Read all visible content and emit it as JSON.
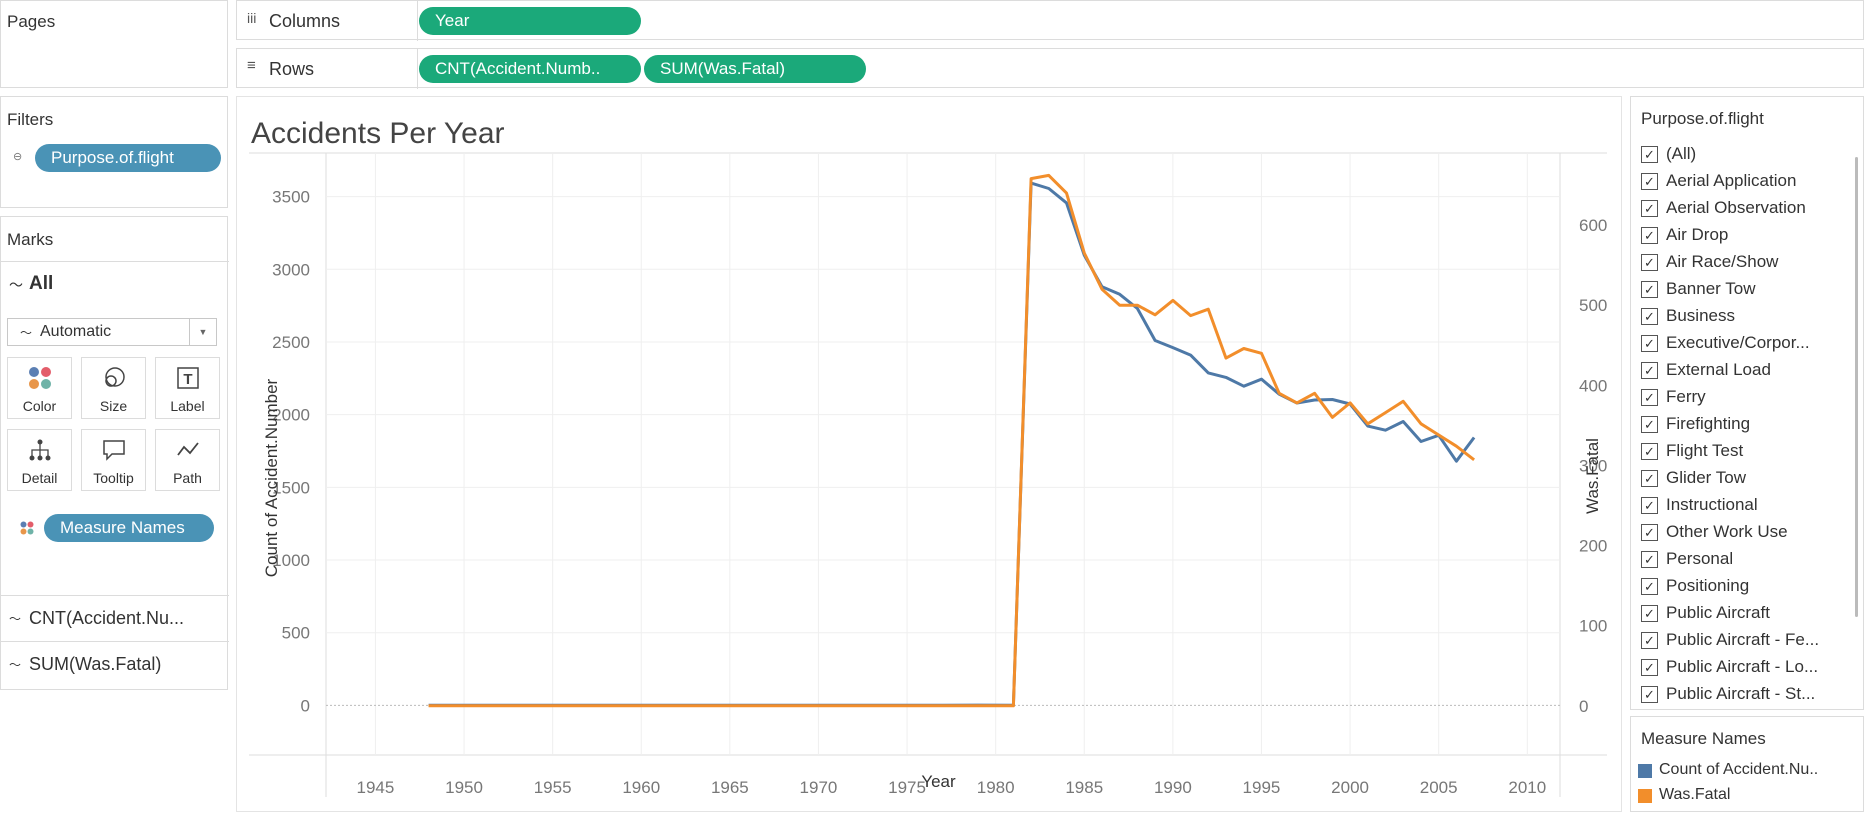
{
  "pages": {
    "title": "Pages"
  },
  "shelves": {
    "columns_label": "Columns",
    "rows_label": "Rows",
    "columns": [
      "Year"
    ],
    "rows": [
      "CNT(Accident.Numb..",
      "SUM(Was.Fatal)"
    ]
  },
  "filters": {
    "title": "Filters",
    "pill": "Purpose.of.flight"
  },
  "marks": {
    "title": "Marks",
    "all_label": "All",
    "mark_type": "Automatic",
    "cards": [
      "Color",
      "Size",
      "Label",
      "Detail",
      "Tooltip",
      "Path"
    ],
    "color_pill": "Measure Names",
    "measures": [
      "CNT(Accident.Nu...",
      "SUM(Was.Fatal)"
    ]
  },
  "filter_card": {
    "title": "Purpose.of.flight",
    "items": [
      "(All)",
      "Aerial Application",
      "Aerial Observation",
      "Air Drop",
      "Air Race/Show",
      "Banner Tow",
      "Business",
      "Executive/Corpor...",
      "External Load",
      "Ferry",
      "Firefighting",
      "Flight Test",
      "Glider Tow",
      "Instructional",
      "Other Work Use",
      "Personal",
      "Positioning",
      "Public Aircraft",
      "Public Aircraft - Fe...",
      "Public Aircraft - Lo...",
      "Public Aircraft - St..."
    ]
  },
  "legend": {
    "title": "Measure Names",
    "items": [
      {
        "label": "Count of Accident.Nu..",
        "color": "#4e79a7"
      },
      {
        "label": "Was.Fatal",
        "color": "#f28e2b"
      }
    ]
  },
  "chart_data": {
    "type": "line",
    "title": "Accidents Per Year",
    "xlabel": "Year",
    "ylabel": "Count of Accident.Number",
    "ylabel_right": "Was.Fatal",
    "xlim": [
      1943,
      2011
    ],
    "ylim_left": [
      -190,
      3800
    ],
    "ylim_right": [
      -34,
      690
    ],
    "x_ticks": [
      1945,
      1950,
      1955,
      1960,
      1965,
      1970,
      1975,
      1980,
      1985,
      1990,
      1995,
      2000,
      2005,
      2010
    ],
    "y_ticks_left": [
      0,
      500,
      1000,
      1500,
      2000,
      2500,
      3000,
      3500
    ],
    "y_ticks_right": [
      0,
      100,
      200,
      300,
      400,
      500,
      600
    ],
    "series": [
      {
        "name": "Count of Accident.Nu..",
        "axis": "left",
        "color": "#4e79a7",
        "x": [
          1948,
          1962,
          1974,
          1977,
          1979,
          1981,
          1982,
          1983,
          1984,
          1985,
          1986,
          1987,
          1988,
          1989,
          1990,
          1991,
          1992,
          1993,
          1994,
          1995,
          1996,
          1997,
          1998,
          1999,
          2000,
          2001,
          2002,
          2003,
          2004,
          2005,
          2006,
          2007
        ],
        "values": [
          1,
          1,
          1,
          1,
          2,
          1,
          3593,
          3556,
          3457,
          3096,
          2880,
          2828,
          2730,
          2510,
          2461,
          2410,
          2287,
          2256,
          2196,
          2244,
          2141,
          2080,
          2101,
          2104,
          2073,
          1921,
          1893,
          1953,
          1815,
          1858,
          1680,
          1843
        ]
      },
      {
        "name": "Was.Fatal",
        "axis": "right",
        "color": "#f28e2b",
        "x": [
          1948,
          1962,
          1974,
          1977,
          1979,
          1981,
          1982,
          1983,
          1984,
          1985,
          1986,
          1987,
          1988,
          1989,
          1990,
          1991,
          1992,
          1993,
          1994,
          1995,
          1996,
          1997,
          1998,
          1999,
          2000,
          2001,
          2002,
          2003,
          2004,
          2005,
          2006,
          2007
        ],
        "values": [
          0,
          0,
          0,
          0,
          0,
          0,
          658,
          662,
          640,
          565,
          520,
          500,
          500,
          488,
          506,
          487,
          495,
          434,
          446,
          440,
          390,
          378,
          390,
          360,
          378,
          352,
          366,
          380,
          352,
          338,
          324,
          307
        ]
      }
    ]
  }
}
